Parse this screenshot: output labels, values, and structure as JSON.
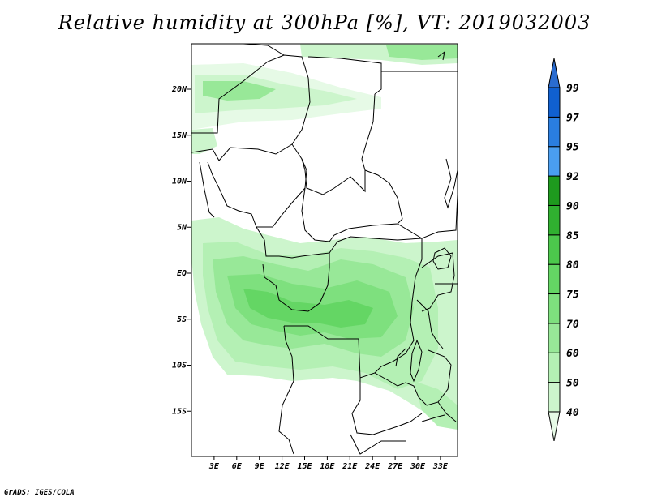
{
  "title": "Relative humidity at 300hPa [%], VT: 2019032003",
  "credit": "GrADS: IGES/COLA",
  "map": {
    "lon_range": [
      0,
      35
    ],
    "lat_range": [
      -20,
      24
    ],
    "lat_ticks": [
      {
        "value": 20,
        "label": "20N"
      },
      {
        "value": 15,
        "label": "15N"
      },
      {
        "value": 10,
        "label": "10N"
      },
      {
        "value": 5,
        "label": "5N"
      },
      {
        "value": 0,
        "label": "EQ"
      },
      {
        "value": -5,
        "label": "5S"
      },
      {
        "value": -10,
        "label": "10S"
      },
      {
        "value": -15,
        "label": "15S"
      }
    ],
    "lon_ticks": [
      {
        "value": 3,
        "label": "3E"
      },
      {
        "value": 6,
        "label": "6E"
      },
      {
        "value": 9,
        "label": "9E"
      },
      {
        "value": 12,
        "label": "12E"
      },
      {
        "value": 15,
        "label": "15E"
      },
      {
        "value": 18,
        "label": "18E"
      },
      {
        "value": 21,
        "label": "21E"
      },
      {
        "value": 24,
        "label": "24E"
      },
      {
        "value": 27,
        "label": "27E"
      },
      {
        "value": 30,
        "label": "30E"
      },
      {
        "value": 33,
        "label": "33E"
      }
    ]
  },
  "colorbar": {
    "levels": [
      "40",
      "50",
      "60",
      "70",
      "75",
      "80",
      "85",
      "90",
      "92",
      "95",
      "97",
      "99"
    ],
    "colors": [
      "#e6fae6",
      "#ccf5cc",
      "#b4f0b4",
      "#98e898",
      "#7ee07e",
      "#64d664",
      "#4cc84c",
      "#30b030",
      "#1e9a1e",
      "#4a9ef0",
      "#2a7ee0",
      "#1060d0",
      "#2a6cd0"
    ]
  }
}
